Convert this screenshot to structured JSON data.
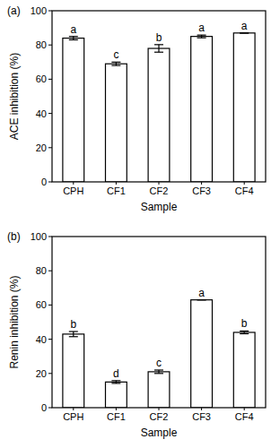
{
  "chart_data": [
    {
      "type": "bar",
      "title": "(a)",
      "x_label": "Sample",
      "y_label": "ACE inhibition (%)",
      "categories": [
        "CPH",
        "CF1",
        "CF2",
        "CF3",
        "CF4"
      ],
      "values": [
        84,
        69,
        78,
        85,
        87
      ],
      "errors": [
        1,
        1,
        2.2,
        0.8,
        0
      ],
      "annotations": [
        "a",
        "c",
        "b",
        "a",
        "a"
      ],
      "color": "#ffffff",
      "ylim": [
        0,
        100
      ],
      "yticks": [
        0,
        20,
        40,
        60,
        80,
        100
      ],
      "grid": false
    },
    {
      "type": "bar",
      "title": "(b)",
      "x_label": "Sample",
      "y_label": "Renin inhibition (%)",
      "categories": [
        "CPH",
        "CF1",
        "CF2",
        "CF3",
        "CF4"
      ],
      "values": [
        43,
        15,
        21,
        63,
        44
      ],
      "errors": [
        1.5,
        0.8,
        1,
        0,
        0.8
      ],
      "annotations": [
        "b",
        "d",
        "c",
        "a",
        "b"
      ],
      "color": "#ffffff",
      "ylim": [
        0,
        100
      ],
      "yticks": [
        0,
        20,
        40,
        60,
        80,
        100
      ],
      "grid": false
    }
  ]
}
